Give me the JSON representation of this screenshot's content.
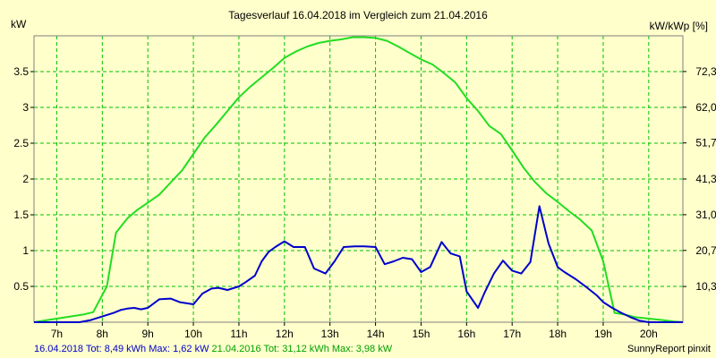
{
  "title": "Tagesverlauf 16.04.2018 im Vergleich zum 21.04.2016",
  "credit": "SunnyReport pinxit",
  "footer": {
    "series1": "16.04.2018 Tot: 8,49 kWh Max: 1,62 kW",
    "series2": "21.04.2016 Tot: 31,12 kWh Max: 3,98 kW"
  },
  "colors": {
    "background": "#ffffcc",
    "grid": "#00c000",
    "series1": "#0000cc",
    "series2": "#22dd22"
  },
  "chart_data": {
    "type": "line",
    "title": "Tagesverlauf 16.04.2018 im Vergleich zum 21.04.2016",
    "ylabel": "kW",
    "y2label": "kW/kWp [%]",
    "xlim": [
      6.5,
      20.75
    ],
    "ylim": [
      0,
      4.0
    ],
    "y2lim": [
      0,
      82.6
    ],
    "grid": true,
    "x_ticks": [
      7,
      8,
      9,
      10,
      11,
      12,
      13,
      14,
      15,
      16,
      17,
      18,
      19,
      20
    ],
    "x_tick_labels": [
      "7h",
      "8h",
      "9h",
      "10h",
      "11h",
      "12h",
      "13h",
      "14h",
      "15h",
      "16h",
      "17h",
      "18h",
      "19h",
      "20h"
    ],
    "y_ticks": [
      0.5,
      1,
      1.5,
      2,
      2.5,
      3,
      3.5
    ],
    "y_tick_labels": [
      "0.5",
      "1",
      "1.5",
      "2",
      "2.5",
      "3",
      "3.5"
    ],
    "y2_ticks": [
      10.3,
      20.7,
      31.0,
      41.3,
      51.7,
      62.0,
      72.3
    ],
    "y2_tick_labels": [
      "10,3",
      "20,7",
      "31,0",
      "41,3",
      "51,7",
      "62,0",
      "72,3"
    ],
    "series": [
      {
        "name": "16.04.2018",
        "color": "#0000cc",
        "x": [
          6.5,
          7.5,
          7.75,
          8.0,
          8.25,
          8.4,
          8.55,
          8.7,
          8.85,
          9.0,
          9.25,
          9.5,
          9.7,
          10.0,
          10.2,
          10.4,
          10.55,
          10.75,
          11.0,
          11.15,
          11.35,
          11.5,
          11.65,
          11.8,
          12.0,
          12.2,
          12.45,
          12.65,
          12.9,
          13.1,
          13.3,
          13.55,
          13.75,
          14.0,
          14.2,
          14.4,
          14.6,
          14.8,
          15.0,
          15.2,
          15.45,
          15.65,
          15.85,
          16.0,
          16.25,
          16.4,
          16.6,
          16.8,
          17.0,
          17.2,
          17.4,
          17.6,
          17.8,
          18.0,
          18.15,
          18.4,
          18.65,
          18.85,
          19.0,
          19.2,
          19.4,
          19.6,
          19.8,
          20.0,
          20.25,
          20.45,
          20.75
        ],
        "y": [
          0,
          0,
          0.03,
          0.08,
          0.13,
          0.17,
          0.19,
          0.2,
          0.18,
          0.2,
          0.32,
          0.33,
          0.28,
          0.25,
          0.4,
          0.47,
          0.48,
          0.45,
          0.5,
          0.56,
          0.65,
          0.85,
          0.98,
          1.05,
          1.13,
          1.05,
          1.05,
          0.75,
          0.68,
          0.85,
          1.05,
          1.06,
          1.06,
          1.05,
          0.81,
          0.85,
          0.9,
          0.88,
          0.7,
          0.77,
          1.12,
          0.96,
          0.92,
          0.43,
          0.2,
          0.42,
          0.68,
          0.86,
          0.72,
          0.68,
          0.84,
          1.62,
          1.1,
          0.77,
          0.7,
          0.6,
          0.48,
          0.38,
          0.28,
          0.2,
          0.13,
          0.07,
          0.02,
          0,
          0,
          0,
          0
        ]
      },
      {
        "name": "21.04.2016",
        "color": "#22dd22",
        "x": [
          6.5,
          6.7,
          7.0,
          7.3,
          7.6,
          7.8,
          8.1,
          8.3,
          8.55,
          8.75,
          9.0,
          9.25,
          9.5,
          9.75,
          10.0,
          10.25,
          10.5,
          10.75,
          11.0,
          11.25,
          11.5,
          11.75,
          12.0,
          12.25,
          12.5,
          12.75,
          13.0,
          13.25,
          13.5,
          13.75,
          14.0,
          14.25,
          14.5,
          14.75,
          15.0,
          15.25,
          15.5,
          15.75,
          16.0,
          16.25,
          16.5,
          16.75,
          17.0,
          17.25,
          17.5,
          17.75,
          18.0,
          18.25,
          18.5,
          18.75,
          19.0,
          19.25,
          19.45,
          19.7,
          20.0,
          20.3,
          20.55,
          20.75
        ],
        "y": [
          0,
          0.02,
          0.05,
          0.08,
          0.11,
          0.14,
          0.5,
          1.25,
          1.45,
          1.56,
          1.67,
          1.78,
          1.95,
          2.12,
          2.35,
          2.58,
          2.76,
          2.95,
          3.14,
          3.29,
          3.42,
          3.55,
          3.69,
          3.78,
          3.85,
          3.9,
          3.93,
          3.95,
          3.98,
          3.98,
          3.97,
          3.93,
          3.85,
          3.76,
          3.67,
          3.6,
          3.48,
          3.35,
          3.13,
          2.95,
          2.74,
          2.63,
          2.4,
          2.16,
          1.96,
          1.8,
          1.68,
          1.55,
          1.43,
          1.28,
          0.85,
          0.13,
          0.11,
          0.07,
          0.05,
          0.03,
          0.01,
          0
        ]
      }
    ]
  }
}
